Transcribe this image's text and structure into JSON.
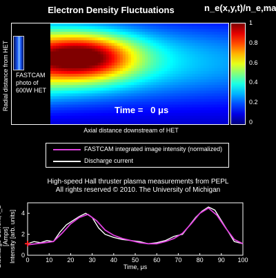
{
  "header": {
    "title": "Electron Density Fluctuations",
    "colorbar_title": "n_e(x,y,t)/n_e,max"
  },
  "heatmap_panel": {
    "fastcam_label": "FASTCAM photo of 600W HET",
    "time_label": "Time =   0 μs",
    "radial_axis_label": "Radial distance from HET",
    "axial_axis_label": "Axial distance downstream of HET",
    "colormap": "jet"
  },
  "colorbar": {
    "ticks": [
      "1",
      "0.8",
      "0.6",
      "0.4",
      "0.2",
      "0"
    ],
    "tick_values": [
      1,
      0.8,
      0.6,
      0.4,
      0.2,
      0
    ]
  },
  "legend": {
    "items": [
      {
        "label": "FASTCAM integrated image intensity (normalized)",
        "color": "#e040e0"
      },
      {
        "label": "Discharge current",
        "color": "#ffffff"
      }
    ]
  },
  "captions": {
    "line1": "High-speed Hall thruster plasma measurements from PEPL",
    "line2": "All rights reserved © 2010. The University of Michigan"
  },
  "chart_data": {
    "type": "line",
    "xlabel": "Time, μs",
    "ylabel_line1": "Discharge Current, I_d [Amps]",
    "ylabel_line2": "Intensity [arb. units]",
    "xlim": [
      0,
      100
    ],
    "ylim": [
      0,
      5
    ],
    "x_ticks": [
      0,
      10,
      20,
      30,
      40,
      50,
      60,
      70,
      80,
      90,
      100
    ],
    "y_ticks": [
      0,
      2,
      4
    ],
    "marker": {
      "x": 0,
      "y": 1.1,
      "color": "#ff2020"
    },
    "series": [
      {
        "name": "Discharge current",
        "color": "#ffffff",
        "x": [
          0,
          3,
          6,
          9,
          12,
          15,
          18,
          21,
          24,
          27,
          30,
          33,
          36,
          40,
          44,
          48,
          52,
          56,
          60,
          64,
          68,
          72,
          75,
          78,
          81,
          84,
          87,
          90,
          93,
          96,
          100
        ],
        "y": [
          1.1,
          1.3,
          1.2,
          1.4,
          1.3,
          2.2,
          2.9,
          3.3,
          3.7,
          4.0,
          3.6,
          2.6,
          2.0,
          1.7,
          1.5,
          1.4,
          1.3,
          1.1,
          1.2,
          1.4,
          1.8,
          2.0,
          2.8,
          3.6,
          4.2,
          4.6,
          4.3,
          3.3,
          2.3,
          1.3,
          1.1
        ]
      },
      {
        "name": "FASTCAM integrated image intensity (normalized)",
        "color": "#e040e0",
        "x": [
          0,
          4,
          8,
          12,
          16,
          20,
          24,
          28,
          32,
          36,
          40,
          44,
          48,
          52,
          56,
          60,
          64,
          68,
          72,
          76,
          80,
          84,
          88,
          92,
          96,
          100
        ],
        "y": [
          1.0,
          1.1,
          1.2,
          1.3,
          2.1,
          3.0,
          3.6,
          3.9,
          3.3,
          2.4,
          1.9,
          1.6,
          1.4,
          1.2,
          1.1,
          1.1,
          1.3,
          1.6,
          2.1,
          3.0,
          4.0,
          4.5,
          3.8,
          2.6,
          1.5,
          1.1
        ]
      }
    ]
  }
}
